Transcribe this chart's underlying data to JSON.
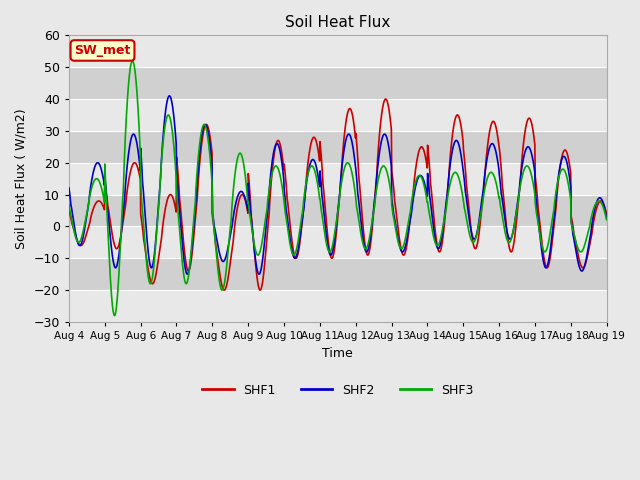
{
  "title": "Soil Heat Flux",
  "ylabel": "Soil Heat Flux ( W/m2)",
  "xlabel": "Time",
  "ylim": [
    -30,
    60
  ],
  "yticks": [
    -30,
    -20,
    -10,
    0,
    10,
    20,
    30,
    40,
    50,
    60
  ],
  "colors": {
    "SHF1": "#cc0000",
    "SHF2": "#0000cc",
    "SHF3": "#00aa00"
  },
  "linewidth": 1.2,
  "annotation_text": "SW_met",
  "annotation_color": "#cc0000",
  "annotation_bg": "#ffffcc",
  "annotation_border": "#cc0000",
  "fig_bg": "#e8e8e8",
  "plot_bg": "#d8d8d8",
  "band_light": "#e8e8e8",
  "band_dark": "#d0d0d0",
  "start_day": 4,
  "end_day": 19,
  "points_per_day": 96,
  "shf1_peaks": [
    8,
    20,
    10,
    32,
    10,
    27,
    28,
    37,
    40,
    25,
    35,
    33,
    34,
    24,
    8,
    5
  ],
  "shf1_troughs": [
    -6,
    -7,
    -18,
    -14,
    -20,
    -20,
    -10,
    -10,
    -9,
    -9,
    -8,
    -7,
    -8,
    -13,
    -13,
    -7
  ],
  "shf1_peak_phase": 0.58,
  "shf2_peaks": [
    20,
    29,
    41,
    32,
    11,
    26,
    21,
    29,
    29,
    16,
    27,
    26,
    25,
    22,
    9,
    5
  ],
  "shf2_troughs": [
    -6,
    -13,
    -13,
    -15,
    -11,
    -15,
    -10,
    -9,
    -8,
    -8,
    -7,
    -4,
    -4,
    -13,
    -14,
    -7
  ],
  "shf2_peak_phase": 0.55,
  "shf3_peaks": [
    15,
    52,
    35,
    32,
    23,
    19,
    19,
    20,
    19,
    16,
    17,
    17,
    19,
    18,
    8,
    5
  ],
  "shf3_troughs": [
    -5,
    -28,
    -18,
    -18,
    -20,
    -9,
    -9,
    -8,
    -7,
    -7,
    -6,
    -5,
    -5,
    -8,
    -8,
    -6
  ],
  "shf3_peak_phase": 0.52
}
